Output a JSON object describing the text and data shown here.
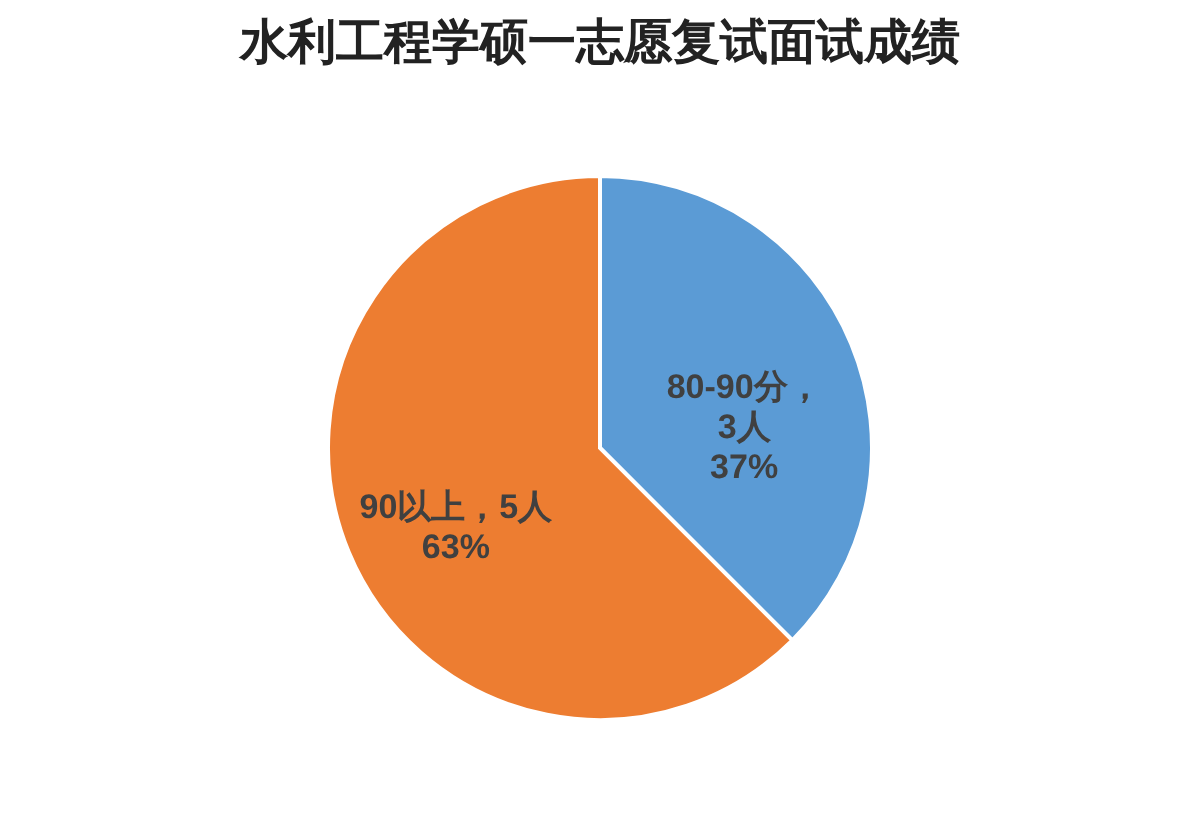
{
  "chart_data": {
    "type": "pie",
    "title": "水利工程学硕一志愿复试面试成绩",
    "categories": [
      "80-90分",
      "90以上"
    ],
    "values": [
      3,
      5
    ],
    "colors": [
      "#5b9bd5",
      "#ed7d31"
    ],
    "value_labels": [
      "，\n3人\n37%",
      "，5人\n63%"
    ]
  }
}
